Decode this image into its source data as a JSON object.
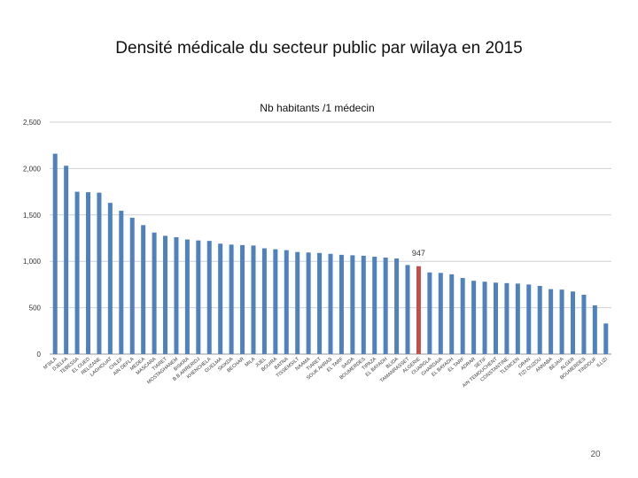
{
  "slide": {
    "title": "Densité médicale du secteur public par wilaya en 2015",
    "page_number": "20"
  },
  "colors": {
    "bar": "#4f81bd",
    "highlight": "#c0504d",
    "grid": "#d0d0d0",
    "text": "#333333"
  },
  "chart_data": {
    "type": "bar",
    "title": "Nb habitants /1 médecin",
    "xlabel": "",
    "ylabel": "",
    "ylim": [
      0,
      2500
    ],
    "yticks": [
      0,
      500,
      1000,
      1500,
      2000,
      2500
    ],
    "ytick_labels": [
      "0",
      "500",
      "1,000",
      "1,500",
      "2,000",
      "2,500"
    ],
    "grid": true,
    "highlight_index": 33,
    "highlight_label": "947",
    "categories": [
      "M'SILA",
      "DJELFA",
      "TEBESSA",
      "EL OUED",
      "RELIZANE",
      "LAGHOUAT",
      "CHLEF",
      "AIN DEFLA",
      "MEDEA",
      "MASCARA",
      "TIARET",
      "MOSTAGHANEM",
      "BISKRA",
      "B.B.ARRERIDJ",
      "KHENCHELA",
      "GUELMA",
      "SKIKDA",
      "BECHAR",
      "MILA",
      "JIJEL",
      "BOUIRA",
      "BATNA",
      "TISSEMSILT",
      "NAAMA",
      "TIARET",
      "SOUK AHRAS",
      "EL TARF",
      "SAIDA",
      "BOUMERDES",
      "TIPAZA",
      "EL BAYADH",
      "BLIDA",
      "TAMANRASSET",
      "ALGERIE",
      "OUARGLA",
      "GHARDAIA",
      "EL BAYADH",
      "EL TARF",
      "ADRAR",
      "SETIF",
      "AIN TEMOUCHENT",
      "CONSTANTINE",
      "TLEMCEN",
      "ORAN",
      "TIZI OUZOU",
      "ANNABA",
      "BEJAIA",
      "ALGER",
      "BOUMERDES",
      "TINDOUF",
      "ILLIZI"
    ],
    "values": [
      2160,
      2030,
      1750,
      1745,
      1740,
      1630,
      1545,
      1470,
      1390,
      1310,
      1275,
      1260,
      1235,
      1225,
      1220,
      1190,
      1180,
      1175,
      1170,
      1140,
      1130,
      1120,
      1100,
      1095,
      1090,
      1080,
      1070,
      1065,
      1060,
      1050,
      1040,
      1030,
      960,
      947,
      880,
      875,
      860,
      820,
      790,
      780,
      770,
      765,
      760,
      750,
      735,
      700,
      695,
      675,
      640,
      525,
      330
    ]
  }
}
